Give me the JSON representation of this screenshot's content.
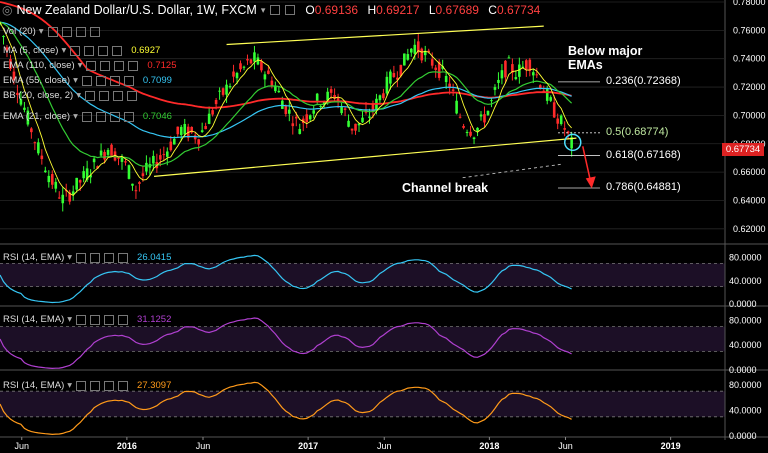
{
  "header": {
    "symbol": "New Zealand Dollar/U.S. Dollar, 1W, FXCM",
    "open_label": "O",
    "open": "0.69136",
    "high_label": "H",
    "high": "0.69217",
    "low_label": "L",
    "low": "0.67689",
    "close_label": "C",
    "close": "0.67734"
  },
  "indicators": [
    {
      "label": "Vol (20)",
      "value": "",
      "color": "#ffffff"
    },
    {
      "label": "MA (5, close)",
      "value": "0.6927",
      "color": "#ffff33"
    },
    {
      "label": "EMA (110, close)",
      "value": "0.7125",
      "color": "#ff2a2a"
    },
    {
      "label": "EMA (55, close)",
      "value": "0.7099",
      "color": "#36c6f4"
    },
    {
      "label": "BB (20, close, 2)",
      "value": "",
      "color": "#ffffff"
    },
    {
      "label": "EMA (21, close)",
      "value": "0.7046",
      "color": "#33cc33"
    }
  ],
  "rsi_panels": [
    {
      "label": "RSI (14, EMA)",
      "value": "26.0415",
      "color": "#36c6f4"
    },
    {
      "label": "RSI (14, EMA)",
      "value": "31.1252",
      "color": "#b040d0"
    },
    {
      "label": "RSI (14, EMA)",
      "value": "27.3097",
      "color": "#ff9a1a"
    }
  ],
  "annotations": {
    "below_emas": "Below major\nEMAs",
    "channel_break": "Channel break"
  },
  "fib_levels": [
    {
      "label": "0.236(0.72368)",
      "price": 0.72368,
      "color": "#ffffff"
    },
    {
      "label": "0.5(0.68774)",
      "price": 0.68774,
      "color": "#bfe8a0"
    },
    {
      "label": "0.618(0.67168)",
      "price": 0.67168,
      "color": "#ffffff"
    },
    {
      "label": "0.786(0.64881)",
      "price": 0.64881,
      "color": "#ffffff"
    }
  ],
  "last_price_tag": "0.67734",
  "colors": {
    "up": "#33ff33",
    "down": "#ff2a2a",
    "channel": "#ffff55",
    "grid": "#444444"
  },
  "chart_data": {
    "type": "line",
    "main": {
      "y_ticks": [
        "0.78000",
        "0.76000",
        "0.74000",
        "0.72000",
        "0.70000",
        "0.68000",
        "0.66000",
        "0.64000",
        "0.62000"
      ],
      "ylim": [
        0.61,
        0.78
      ],
      "close_path": [
        [
          2015.3,
          0.765
        ],
        [
          2015.4,
          0.718
        ],
        [
          2015.5,
          0.68
        ],
        [
          2015.58,
          0.655
        ],
        [
          2015.65,
          0.64
        ],
        [
          2015.72,
          0.65
        ],
        [
          2015.8,
          0.662
        ],
        [
          2015.9,
          0.678
        ],
        [
          2016.0,
          0.664
        ],
        [
          2016.05,
          0.648
        ],
        [
          2016.1,
          0.66
        ],
        [
          2016.2,
          0.672
        ],
        [
          2016.3,
          0.69
        ],
        [
          2016.4,
          0.685
        ],
        [
          2016.5,
          0.71
        ],
        [
          2016.6,
          0.728
        ],
        [
          2016.7,
          0.74
        ],
        [
          2016.8,
          0.725
        ],
        [
          2016.88,
          0.705
        ],
        [
          2016.95,
          0.692
        ],
        [
          2017.05,
          0.71
        ],
        [
          2017.15,
          0.715
        ],
        [
          2017.25,
          0.69
        ],
        [
          2017.35,
          0.702
        ],
        [
          2017.45,
          0.725
        ],
        [
          2017.52,
          0.735
        ],
        [
          2017.58,
          0.75
        ],
        [
          2017.65,
          0.742
        ],
        [
          2017.72,
          0.733
        ],
        [
          2017.78,
          0.722
        ],
        [
          2017.85,
          0.695
        ],
        [
          2017.92,
          0.688
        ],
        [
          2018.0,
          0.705
        ],
        [
          2018.05,
          0.722
        ],
        [
          2018.1,
          0.736
        ],
        [
          2018.15,
          0.73
        ],
        [
          2018.22,
          0.738
        ],
        [
          2018.28,
          0.724
        ],
        [
          2018.34,
          0.708
        ],
        [
          2018.38,
          0.698
        ],
        [
          2018.42,
          0.69
        ],
        [
          2018.45,
          0.68
        ],
        [
          2018.47,
          0.677
        ]
      ],
      "channel_upper": [
        [
          2016.55,
          0.75
        ],
        [
          2018.3,
          0.763
        ]
      ],
      "channel_lower": [
        [
          2016.15,
          0.657
        ],
        [
          2018.48,
          0.684
        ]
      ]
    },
    "rsi": {
      "ylim": [
        0,
        100
      ],
      "ticks": [
        "80.0000",
        "40.0000",
        "0.0000"
      ],
      "levels": [
        70,
        30
      ]
    },
    "x_ticks": [
      {
        "label": "Jun",
        "x": 2015.42
      },
      {
        "label": "2016",
        "x": 2016.0
      },
      {
        "label": "Jun",
        "x": 2016.42
      },
      {
        "label": "2017",
        "x": 2017.0
      },
      {
        "label": "Jun",
        "x": 2017.42
      },
      {
        "label": "2018",
        "x": 2018.0
      },
      {
        "label": "Jun",
        "x": 2018.42
      },
      {
        "label": "2019",
        "x": 2019.0
      }
    ],
    "xlim": [
      2015.3,
      2019.3
    ]
  }
}
